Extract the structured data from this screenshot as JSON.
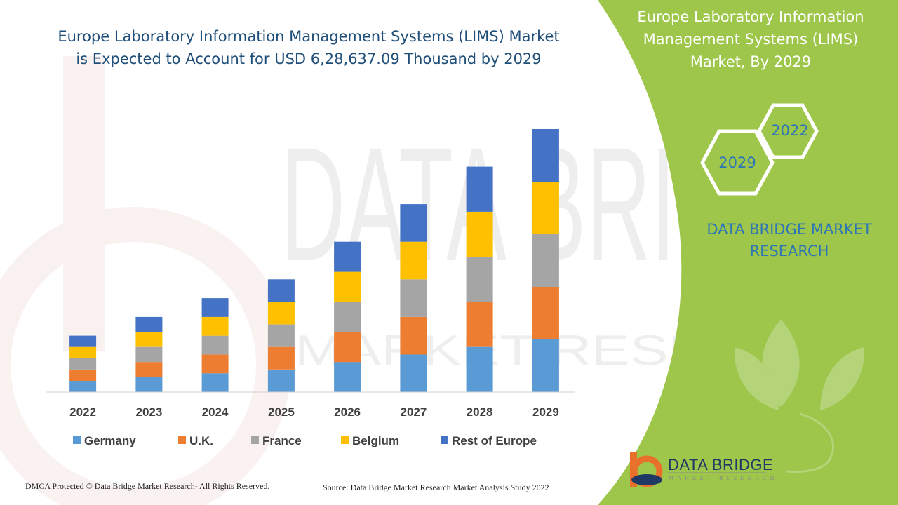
{
  "header": {
    "title_line1": "Europe Laboratory Information Management Systems (LIMS) Market",
    "title_line2": "is Expected to Account for USD 6,28,637.09 Thousand by 2029"
  },
  "side_panel": {
    "title_line1": "Europe Laboratory Information",
    "title_line2": "Management Systems (LIMS)",
    "title_line3": "Market, By 2029",
    "hex_year_top": "2022",
    "hex_year_bottom": "2029",
    "brand_line1": "DATA BRIDGE MARKET",
    "brand_line2": "RESEARCH",
    "logo_name": "DATA BRIDGE",
    "logo_sub": "MARKET RESEARCH",
    "panel_color": "#9ec64a",
    "hex_color": "#ffffff",
    "brand_color": "#2e75b6"
  },
  "watermark": {
    "text": "DATA BRIDGE",
    "subtext": "MARKET RESEARCH"
  },
  "footer": {
    "copyright": "DMCA Protected © Data Bridge Market Research- All Rights Reserved.",
    "source": "Source: Data Bridge Market Research Market Analysis Study 2022"
  },
  "chart_data": {
    "type": "bar",
    "stacked": true,
    "categories": [
      "2022",
      "2023",
      "2024",
      "2025",
      "2026",
      "2027",
      "2028",
      "2029"
    ],
    "series": [
      {
        "name": "Germany",
        "color": "#5b9bd5",
        "values": [
          3.0,
          4.0,
          5.0,
          6.0,
          8.0,
          10.0,
          12.0,
          14.0
        ]
      },
      {
        "name": "U.K.",
        "color": "#ed7d31",
        "values": [
          3.0,
          4.0,
          5.0,
          6.0,
          8.0,
          10.0,
          12.0,
          14.0
        ]
      },
      {
        "name": "France",
        "color": "#a5a5a5",
        "values": [
          3.0,
          4.0,
          5.0,
          6.0,
          8.0,
          10.0,
          12.0,
          14.0
        ]
      },
      {
        "name": "Belgium",
        "color": "#ffc000",
        "values": [
          3.0,
          4.0,
          5.0,
          6.0,
          8.0,
          10.0,
          12.0,
          14.0
        ]
      },
      {
        "name": "Rest of Europe",
        "color": "#4472c4",
        "values": [
          3.0,
          4.0,
          5.0,
          6.0,
          8.0,
          10.0,
          12.0,
          14.0
        ]
      }
    ],
    "legend_position": "bottom",
    "grid": false,
    "ylim": [
      0,
      70
    ]
  }
}
